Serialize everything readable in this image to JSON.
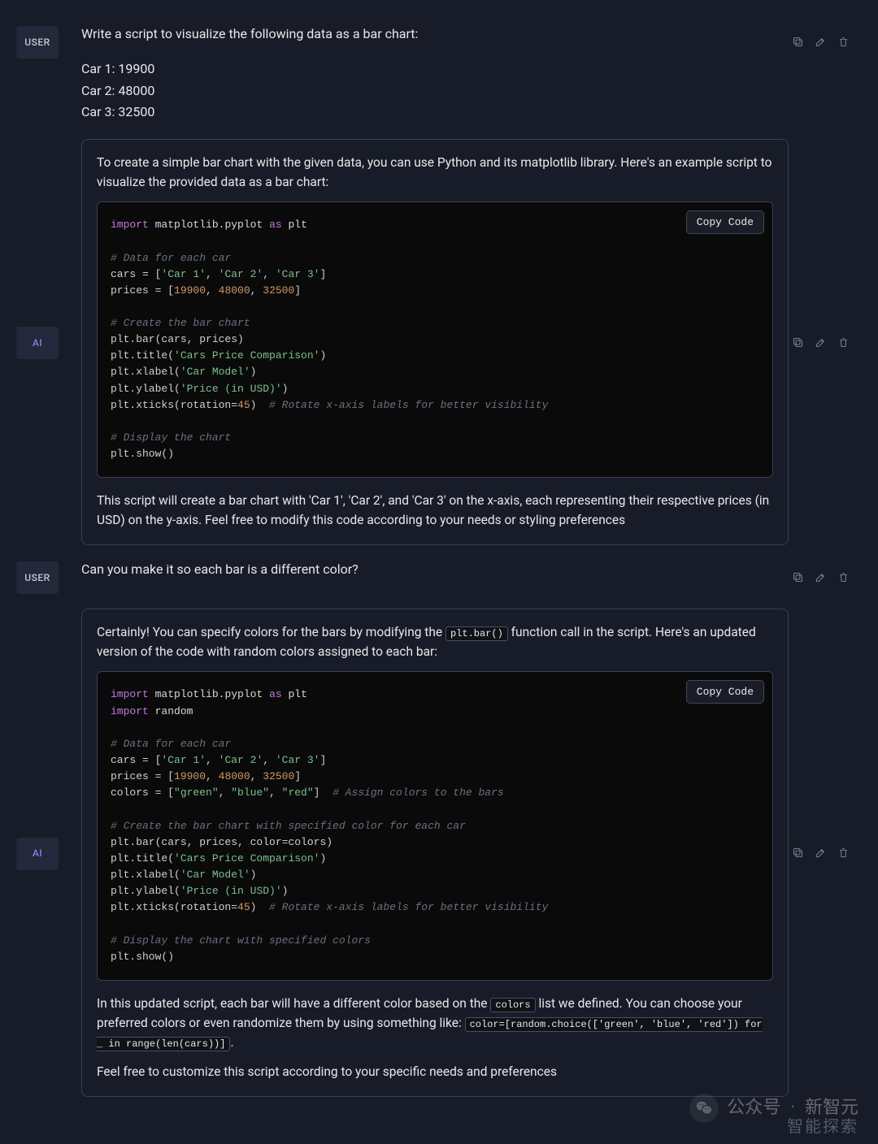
{
  "colors": {
    "background": "#181c28",
    "text": "#e8e8ea",
    "bubble_border": "#3a3f52",
    "badge_bg": "#23283a",
    "ai_accent": "#8e7cf0",
    "code_bg": "#0a0a0b",
    "icon_muted": "#7a7f90",
    "syntax": {
      "keyword": "#c678dd",
      "string": "#7cc08c",
      "number": "#d19a66",
      "comment": "#6a717f"
    }
  },
  "roles": {
    "user": "USER",
    "ai": "AI"
  },
  "copy_button": "Copy Code",
  "messages": {
    "user1": {
      "prompt": "Write a script to visualize the following data as a bar chart:",
      "data_lines": [
        "Car 1: 19900",
        "Car 2: 48000",
        "Car 3: 32500"
      ]
    },
    "ai1": {
      "intro": "To create a simple bar chart with the given data, you can use Python and its matplotlib library. Here's an example script to visualize the provided data as a bar chart:",
      "outro": "This script will create a bar chart with 'Car 1', 'Car 2', and 'Car 3' on the x-axis, each representing their respective prices (in USD) on the y-axis. Feel free to modify this code according to your needs or styling preferences",
      "code": {
        "cars": [
          "Car 1",
          "Car 2",
          "Car 3"
        ],
        "prices": [
          19900,
          48000,
          32500
        ],
        "title": "Cars Price Comparison",
        "xlabel": "Car Model",
        "ylabel": "Price (in USD)",
        "rotation": 45,
        "comments": {
          "data": "# Data for each car",
          "create": "# Create the bar chart",
          "rotate": "# Rotate x-axis labels for better visibility",
          "display": "# Display the chart"
        }
      }
    },
    "user2": {
      "prompt": "Can you make it so each bar is a different color?"
    },
    "ai2": {
      "intro_before": "Certainly! You can specify colors for the bars by modifying the ",
      "intro_code": "plt.bar()",
      "intro_after": " function call in the script. Here's an updated version of the code with random colors assigned to each bar:",
      "outro1_before": "In this updated script, each bar will have a different color based on the ",
      "outro1_code1": "colors",
      "outro1_mid": " list we defined. You can choose your preferred colors or even randomize them by using something like: ",
      "outro1_code2": "color=[random.choice(['green', 'blue', 'red']) for _ in range(len(cars))]",
      "outro1_after": ".",
      "outro2": "Feel free to customize this script according to your specific needs and preferences",
      "code": {
        "cars": [
          "Car 1",
          "Car 2",
          "Car 3"
        ],
        "prices": [
          19900,
          48000,
          32500
        ],
        "colors_list": [
          "green",
          "blue",
          "red"
        ],
        "title": "Cars Price Comparison",
        "xlabel": "Car Model",
        "ylabel": "Price (in USD)",
        "rotation": 45,
        "comments": {
          "data": "# Data for each car",
          "assign": "# Assign colors to the bars",
          "create": "# Create the bar chart with specified color for each car",
          "rotate": "# Rotate x-axis labels for better visibility",
          "display": "# Display the chart with specified colors"
        }
      }
    }
  },
  "watermark": {
    "label": "公众号",
    "brand1": "新智元",
    "brand2": "智能探索"
  }
}
